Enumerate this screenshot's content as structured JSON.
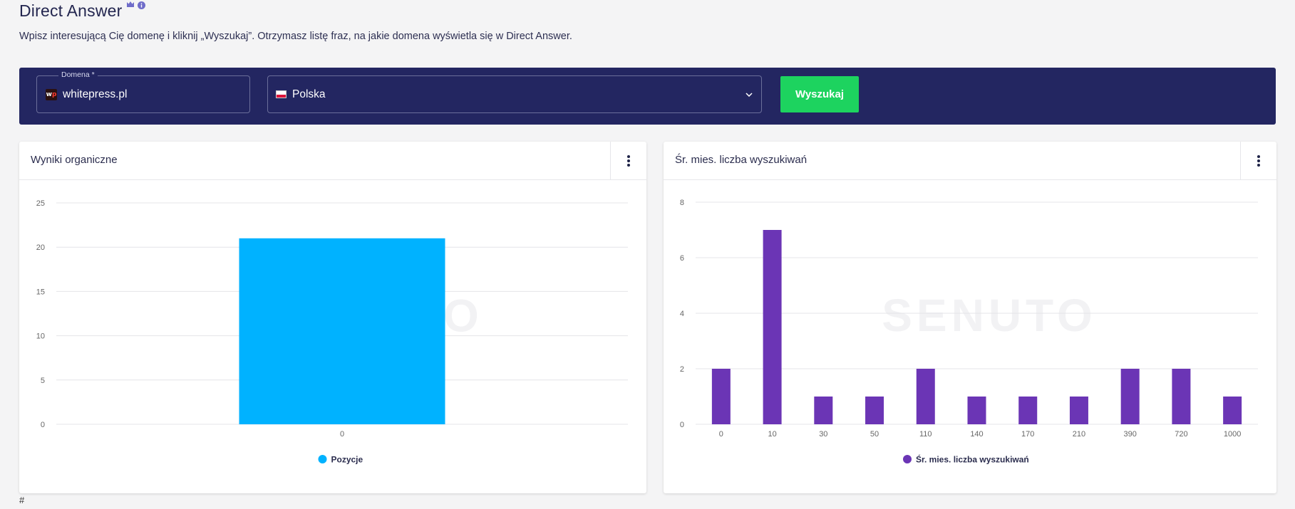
{
  "header": {
    "title": "Direct Answer",
    "subtitle": "Wpisz interesującą Cię domenę i kliknij „Wyszukaj”. Otrzymasz listę fraz, na jakie domena wyświetla się w Direct Answer."
  },
  "search": {
    "domain_label": "Domena *",
    "domain_value": "whitepress.pl",
    "country_value": "Polska",
    "button_label": "Wyszukaj"
  },
  "colors": {
    "bar_blue": "#00b2ff",
    "bar_purple": "#6b35b5",
    "search_bar_bg": "#232661",
    "button_green": "#1dd35f"
  },
  "watermark": "SENUTO",
  "footer": {
    "text": "#"
  },
  "chart_data": [
    {
      "type": "bar",
      "title": "Wyniki organiczne",
      "categories": [
        "0"
      ],
      "series": [
        {
          "name": "Pozycje",
          "values": [
            21
          ]
        }
      ],
      "yticks": [
        "0",
        "5",
        "10",
        "15",
        "20",
        "25"
      ],
      "ylim": [
        0,
        25
      ],
      "grid": true,
      "legend": "bottom"
    },
    {
      "type": "bar",
      "title": "Śr. mies. liczba wyszukiwań",
      "categories": [
        "0",
        "10",
        "30",
        "50",
        "110",
        "140",
        "170",
        "210",
        "390",
        "720",
        "1000"
      ],
      "series": [
        {
          "name": "Śr. mies. liczba wyszukiwań",
          "values": [
            2,
            7,
            1,
            1,
            2,
            1,
            1,
            1,
            2,
            2,
            1
          ]
        }
      ],
      "yticks": [
        "0",
        "2",
        "4",
        "6",
        "8"
      ],
      "ylim": [
        0,
        8
      ],
      "grid": true,
      "legend": "bottom"
    }
  ]
}
